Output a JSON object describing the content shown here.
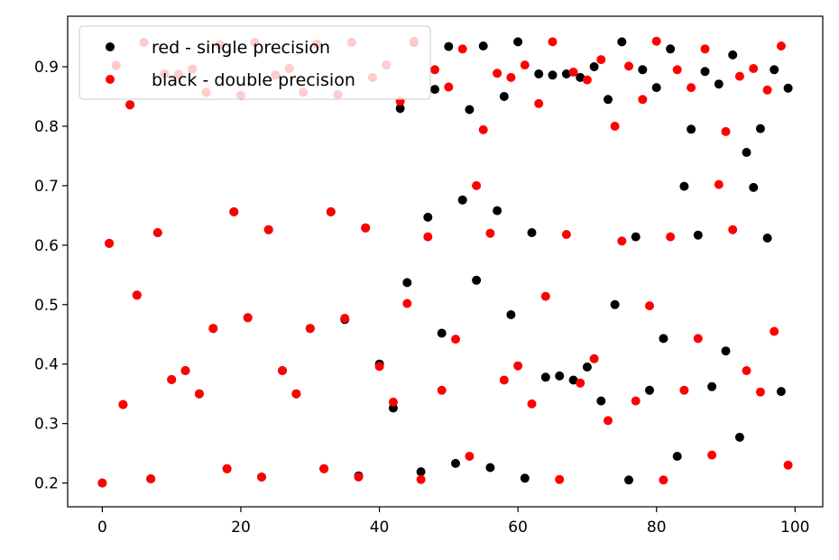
{
  "chart_data": {
    "type": "scatter",
    "title": "",
    "xlabel": "",
    "ylabel": "",
    "xlim": [
      -5,
      104
    ],
    "ylim": [
      0.16,
      0.985
    ],
    "xticks": [
      0,
      20,
      40,
      60,
      80,
      100
    ],
    "yticks": [
      0.2,
      0.3,
      0.4,
      0.5,
      0.6,
      0.7,
      0.8,
      0.9
    ],
    "grid": false,
    "legend_position": "top-left",
    "series": [
      {
        "name": "red - single precision",
        "color": "#000000",
        "x": [
          0,
          1,
          2,
          3,
          4,
          5,
          6,
          7,
          8,
          9,
          10,
          11,
          12,
          13,
          14,
          15,
          16,
          17,
          18,
          19,
          20,
          21,
          22,
          23,
          24,
          25,
          26,
          27,
          28,
          29,
          30,
          31,
          32,
          33,
          34,
          35,
          36,
          37,
          38,
          39,
          40,
          41,
          42,
          43,
          44,
          45,
          46,
          47,
          48,
          49,
          50,
          51,
          52,
          53,
          54,
          55,
          56,
          57,
          58,
          59,
          60,
          61,
          62,
          63,
          64,
          65,
          66,
          67,
          68,
          69,
          70,
          71,
          72,
          73,
          74,
          75,
          76,
          77,
          78,
          79,
          80,
          81,
          82,
          83,
          84,
          85,
          86,
          87,
          88,
          89,
          90,
          91,
          92,
          93,
          94,
          95,
          96,
          97,
          98,
          99
        ],
        "y": [
          0.2,
          0.603,
          0.902,
          0.332,
          0.836,
          0.516,
          0.941,
          0.207,
          0.621,
          0.888,
          0.374,
          0.887,
          0.389,
          0.896,
          0.35,
          0.857,
          0.46,
          0.937,
          0.224,
          0.656,
          0.852,
          0.478,
          0.941,
          0.21,
          0.626,
          0.886,
          0.389,
          0.897,
          0.35,
          0.857,
          0.46,
          0.938,
          0.224,
          0.656,
          0.853,
          0.475,
          0.941,
          0.212,
          0.629,
          0.882,
          0.4,
          0.903,
          0.326,
          0.83,
          0.537,
          0.941,
          0.219,
          0.647,
          0.862,
          0.452,
          0.934,
          0.233,
          0.676,
          0.828,
          0.541,
          0.935,
          0.226,
          0.658,
          0.85,
          0.483,
          0.942,
          0.208,
          0.621,
          0.888,
          0.378,
          0.886,
          0.38,
          0.888,
          0.373,
          0.882,
          0.395,
          0.9,
          0.338,
          0.845,
          0.5,
          0.942,
          0.205,
          0.614,
          0.895,
          0.356,
          0.865,
          0.443,
          0.93,
          0.245,
          0.699,
          0.795,
          0.617,
          0.892,
          0.362,
          0.871,
          0.422,
          0.92,
          0.277,
          0.756,
          0.697,
          0.796,
          0.612,
          0.895,
          0.354,
          0.864
        ]
      },
      {
        "name": "black - double precision",
        "color": "#ff0000",
        "x": [
          0,
          1,
          2,
          3,
          4,
          5,
          6,
          7,
          8,
          9,
          10,
          11,
          12,
          13,
          14,
          15,
          16,
          17,
          18,
          19,
          20,
          21,
          22,
          23,
          24,
          25,
          26,
          27,
          28,
          29,
          30,
          31,
          32,
          33,
          34,
          35,
          36,
          37,
          38,
          39,
          40,
          41,
          42,
          43,
          44,
          45,
          46,
          47,
          48,
          49,
          50,
          51,
          52,
          53,
          54,
          55,
          56,
          57,
          58,
          59,
          60,
          61,
          62,
          63,
          64,
          65,
          66,
          67,
          68,
          69,
          70,
          71,
          72,
          73,
          74,
          75,
          76,
          77,
          78,
          79,
          80,
          81,
          82,
          83,
          84,
          85,
          86,
          87,
          88,
          89,
          90,
          91,
          92,
          93,
          94,
          95,
          96,
          97,
          98,
          99
        ],
        "y": [
          0.2,
          0.603,
          0.902,
          0.332,
          0.836,
          0.516,
          0.941,
          0.207,
          0.621,
          0.888,
          0.374,
          0.887,
          0.389,
          0.896,
          0.35,
          0.857,
          0.46,
          0.937,
          0.224,
          0.656,
          0.852,
          0.478,
          0.941,
          0.21,
          0.626,
          0.886,
          0.389,
          0.897,
          0.35,
          0.857,
          0.46,
          0.938,
          0.224,
          0.656,
          0.853,
          0.477,
          0.941,
          0.21,
          0.629,
          0.882,
          0.396,
          0.903,
          0.336,
          0.842,
          0.502,
          0.943,
          0.206,
          0.614,
          0.895,
          0.356,
          0.866,
          0.442,
          0.93,
          0.245,
          0.7,
          0.794,
          0.62,
          0.889,
          0.373,
          0.882,
          0.397,
          0.903,
          0.333,
          0.838,
          0.514,
          0.942,
          0.206,
          0.618,
          0.891,
          0.368,
          0.878,
          0.409,
          0.912,
          0.305,
          0.8,
          0.607,
          0.901,
          0.338,
          0.845,
          0.498,
          0.943,
          0.205,
          0.614,
          0.895,
          0.356,
          0.865,
          0.443,
          0.93,
          0.247,
          0.702,
          0.791,
          0.626,
          0.884,
          0.389,
          0.897,
          0.353,
          0.861,
          0.455,
          0.935,
          0.23
        ]
      }
    ]
  }
}
